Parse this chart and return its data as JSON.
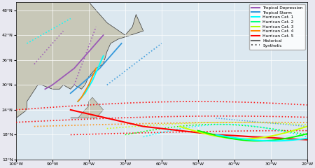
{
  "title": "",
  "xlim": [
    -100,
    -20
  ],
  "ylim": [
    12,
    50
  ],
  "xticks": [
    -100,
    -90,
    -80,
    -70,
    -60,
    -50,
    -40,
    -30,
    -20
  ],
  "yticks": [
    12,
    18,
    24,
    30,
    36,
    42,
    48
  ],
  "xtick_labels": [
    "100°W",
    "90°W",
    "80°W",
    "70°W",
    "60°W",
    "50°W",
    "40°W",
    "30°W",
    "20°W"
  ],
  "ytick_labels": [
    "12°N",
    "18°N",
    "24°N",
    "30°N",
    "36°N",
    "42°N",
    "48°N"
  ],
  "figsize": [
    4.5,
    2.4
  ],
  "dpi": 100,
  "legend_entries": [
    {
      "label": "Tropical Depression",
      "color": "#9b59b6",
      "lw": 1.5
    },
    {
      "label": "Tropical Storm",
      "color": "#3498db",
      "lw": 1.5
    },
    {
      "label": "Hurrican Cat. 1",
      "color": "#00ffff",
      "lw": 1.5
    },
    {
      "label": "Hurrican Cat. 2",
      "color": "#00ff80",
      "lw": 1.5
    },
    {
      "label": "Hurrican Cat. 3",
      "color": "#aaff00",
      "lw": 1.5
    },
    {
      "label": "Hurrican Cat. 4",
      "color": "#ff8c00",
      "lw": 1.5
    },
    {
      "label": "Hurrican Cat. 5",
      "color": "#ff0000",
      "lw": 1.5
    },
    {
      "label": "Historical",
      "color": "#666666",
      "linestyle": "-"
    },
    {
      "label": "Synthetic",
      "color": "#666666",
      "linestyle": ":"
    }
  ],
  "bg_color": "#e8e8f0",
  "map_bg": "#dce8f0",
  "grid_color": "#ffffff",
  "track_colors": {
    "depression": "#9b59b6",
    "storm": "#3498db",
    "cat1": "#00ffff",
    "cat2": "#00ff00",
    "cat3": "#ccff00",
    "cat4": "#ff8800",
    "cat5": "#ff0000"
  }
}
